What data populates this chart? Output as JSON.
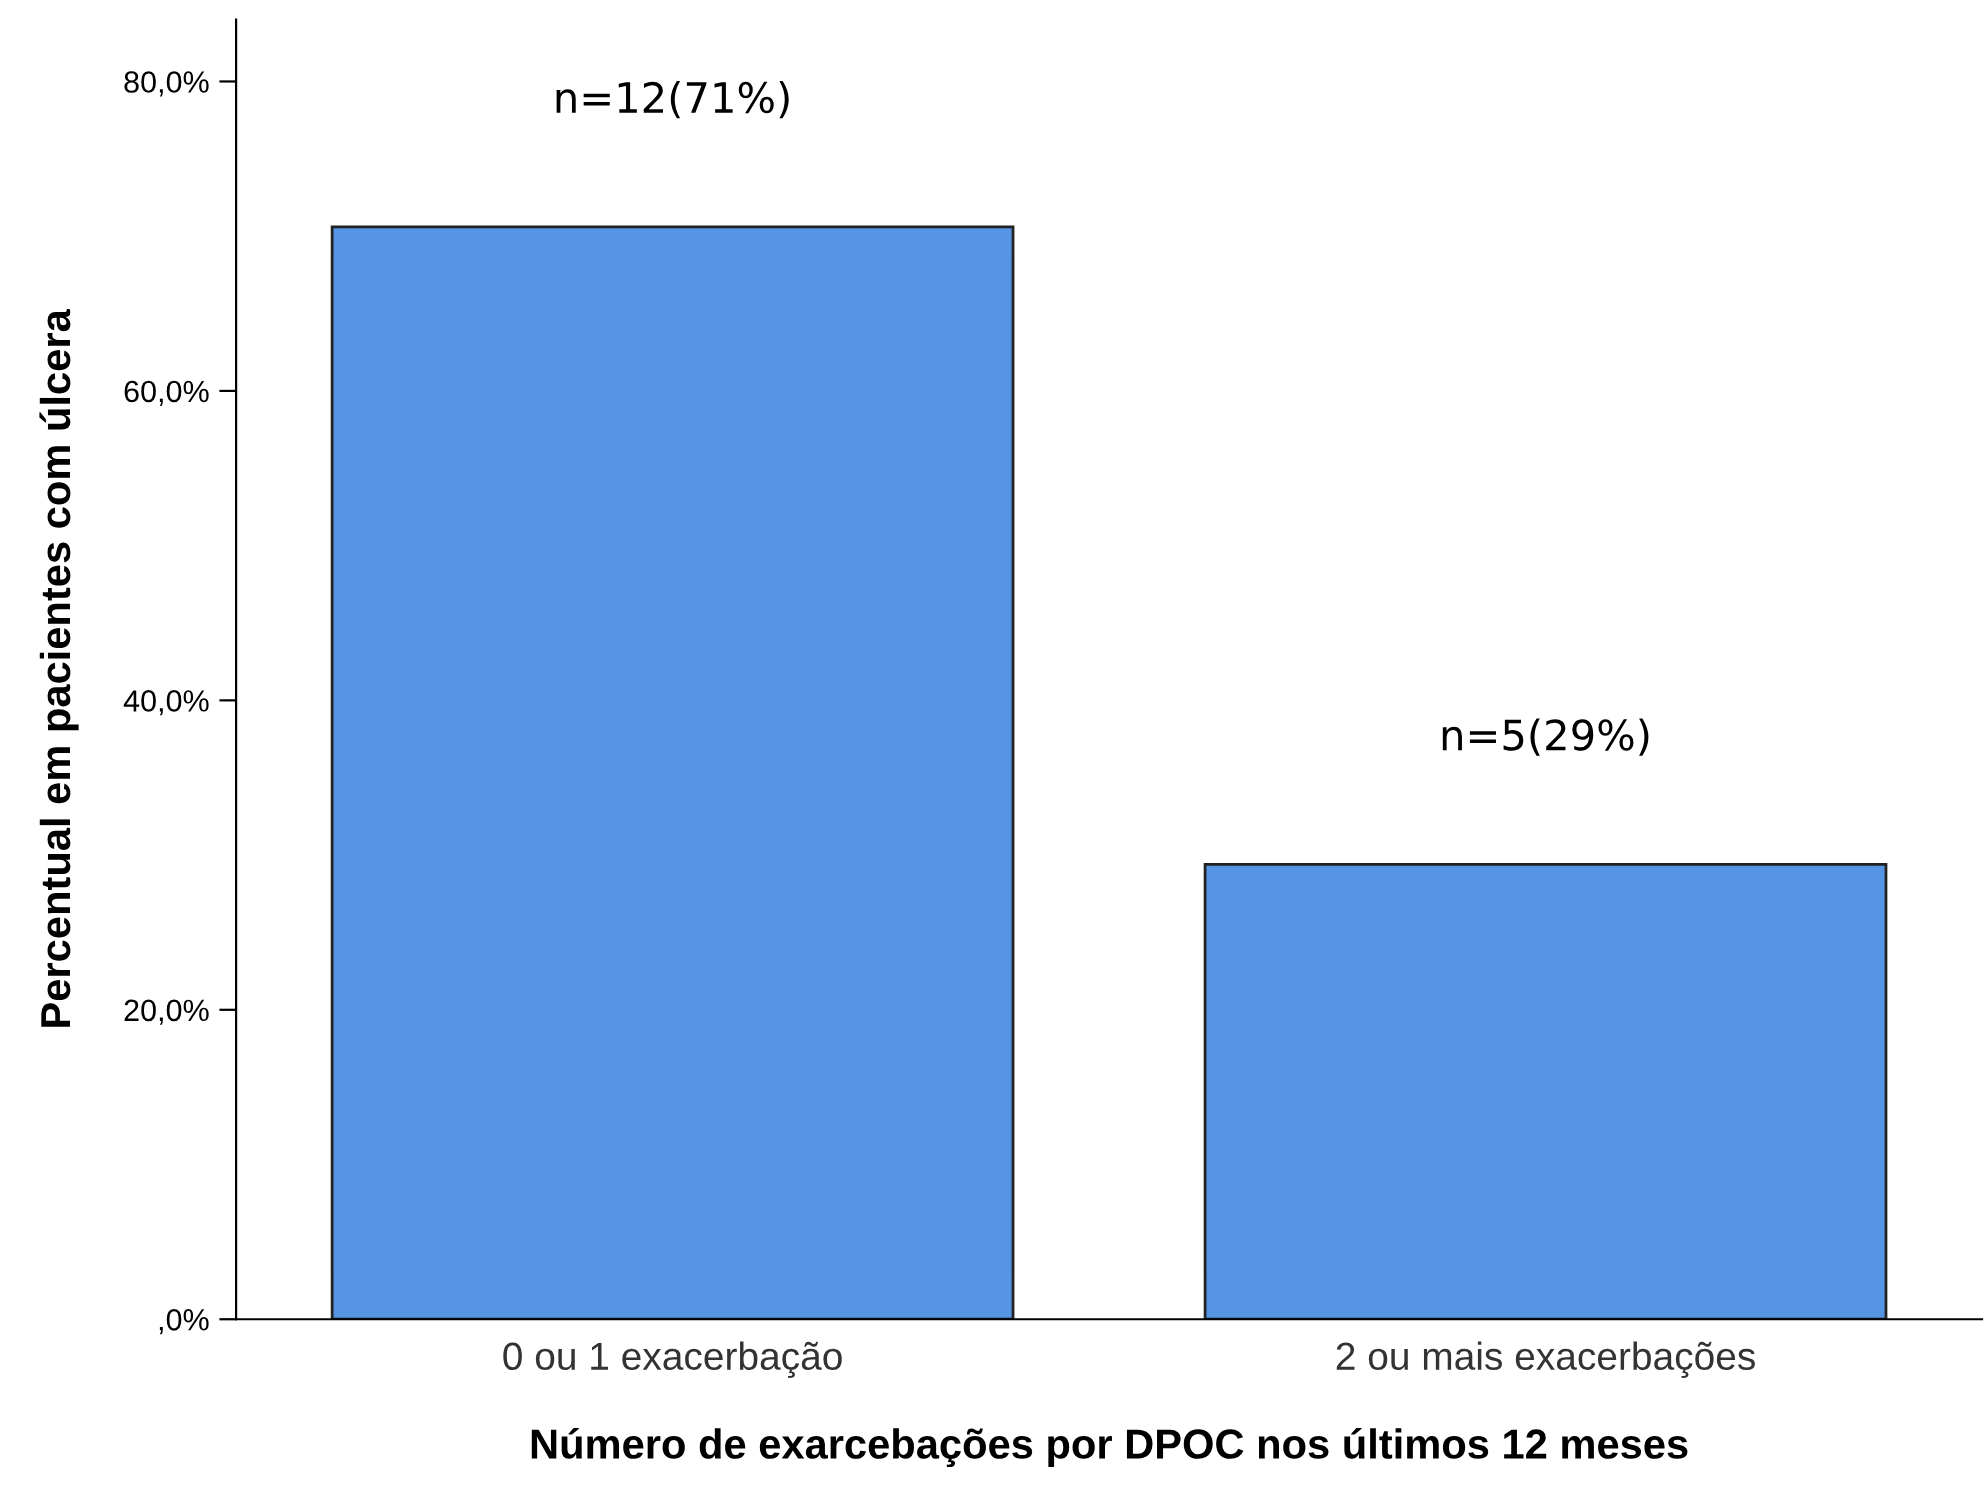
{
  "chart_data": {
    "type": "bar",
    "xlabel": "Número de exarcebações por DPOC nos últimos 12 meses",
    "ylabel": "Percentual em pacientes com úlcera",
    "categories": [
      "0 ou 1 exacerbação",
      "2 ou mais exacerbações"
    ],
    "values": [
      70.6,
      29.4
    ],
    "value_labels": [
      "n=12(71%)",
      "n=5(29%)"
    ],
    "color": "#5595e3",
    "ylim": [
      0,
      84
    ],
    "yticks": [
      {
        "value": 0,
        "label": ",0%"
      },
      {
        "value": 20,
        "label": "20,0%"
      },
      {
        "value": 40,
        "label": "40,0%"
      },
      {
        "value": 60,
        "label": "60,0%"
      },
      {
        "value": 80,
        "label": "80,0%"
      }
    ],
    "grid": false,
    "legend": false
  }
}
